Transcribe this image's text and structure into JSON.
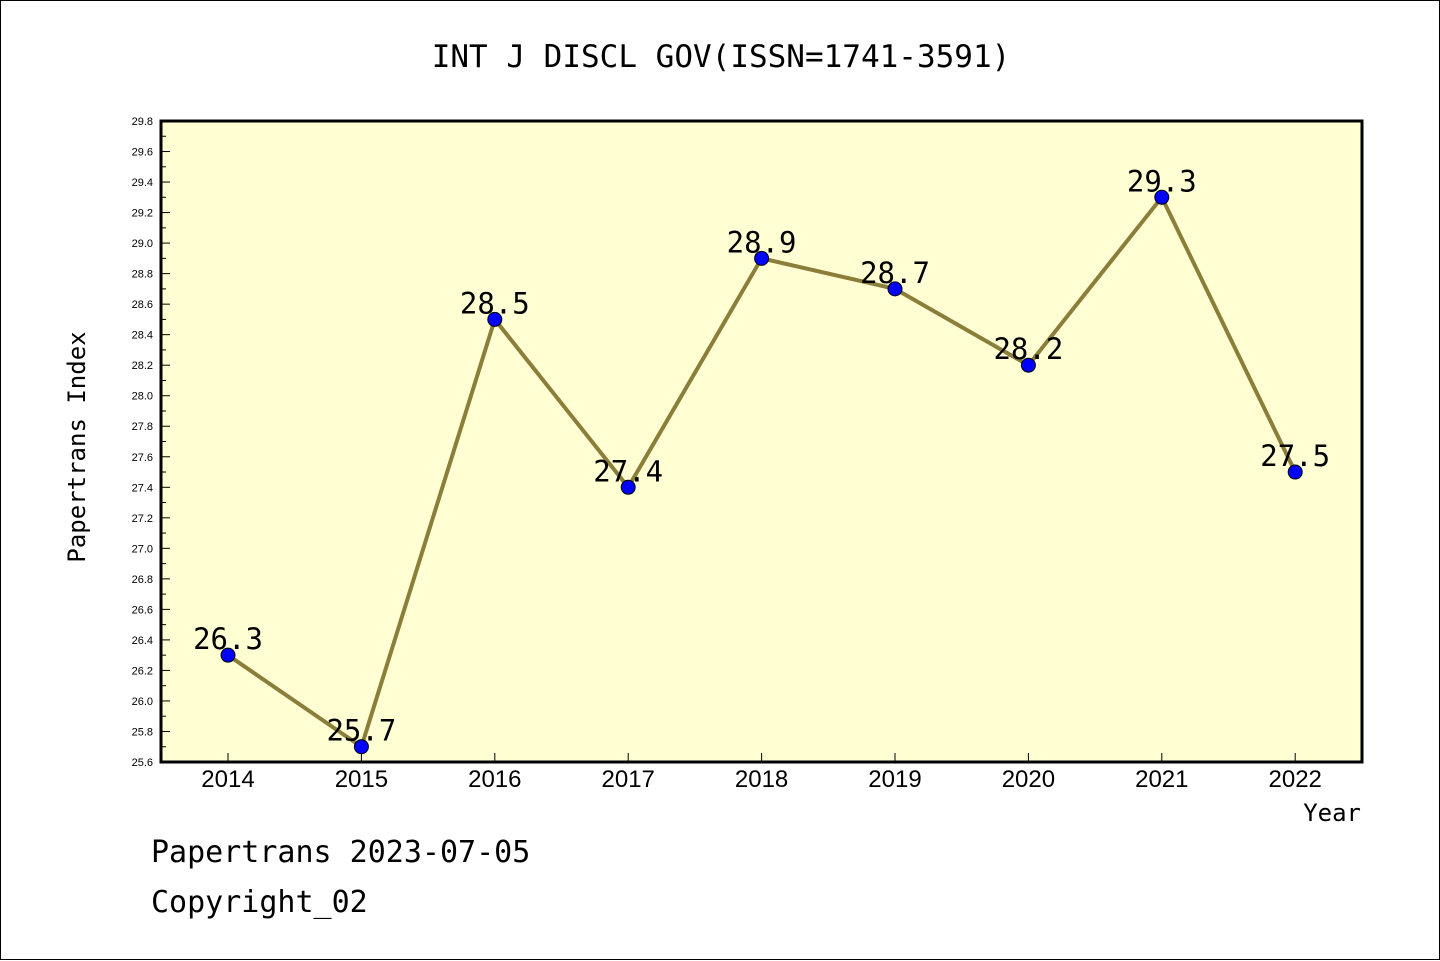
{
  "chart_data": {
    "type": "line",
    "title": "INT J DISCL GOV(ISSN=1741-3591)",
    "xlabel": "Year",
    "ylabel": "Papertrans Index",
    "categories": [
      "2014",
      "2015",
      "2016",
      "2017",
      "2018",
      "2019",
      "2020",
      "2021",
      "2022"
    ],
    "values": [
      26.3,
      25.7,
      28.5,
      27.4,
      28.9,
      28.7,
      28.2,
      29.3,
      27.5
    ],
    "data_labels": [
      "26.3",
      "25.7",
      "28.5",
      "27.4",
      "28.9",
      "28.7",
      "28.2",
      "29.3",
      "27.5"
    ],
    "ylim": [
      25.6,
      29.8
    ],
    "yticks": [
      "25.6",
      "25.8",
      "26.0",
      "26.2",
      "26.4",
      "26.6",
      "26.8",
      "27.0",
      "27.2",
      "27.4",
      "27.6",
      "27.8",
      "28.0",
      "28.2",
      "28.4",
      "28.6",
      "28.8",
      "29.0",
      "29.2",
      "29.4",
      "29.6",
      "29.8"
    ],
    "grid": false,
    "colors": {
      "plot_background": "#FFFFD3",
      "line": "#8B7D3A",
      "marker": "#0000FF",
      "axis": "#000000"
    }
  },
  "footer": {
    "source": "Papertrans 2023-07-05",
    "copyright": "Copyright_02"
  }
}
